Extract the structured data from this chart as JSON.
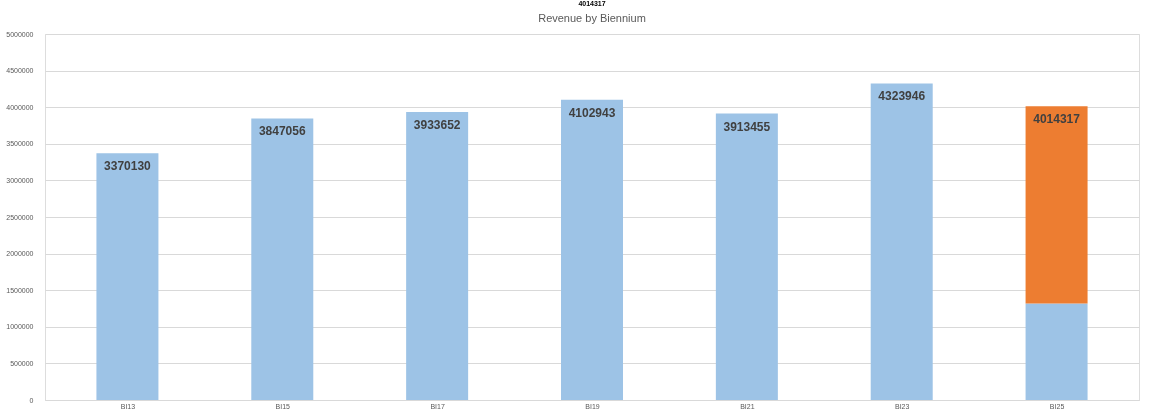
{
  "chart_data": {
    "type": "bar",
    "title": "Revenue by Biennium",
    "annotations": [
      "4014317"
    ],
    "categories": [
      "BI13",
      "BI15",
      "BI17",
      "BI19",
      "BI21",
      "BI23",
      "BI25"
    ],
    "stacked": true,
    "series": [
      {
        "color": "#9dc3e6",
        "values": [
          3370130,
          3847056,
          3933652,
          4102943,
          3913455,
          4323946,
          1320000
        ],
        "value_labels": [
          "3370130",
          "3847056",
          "3933652",
          "4102943",
          "3913455",
          "4323946",
          null
        ]
      },
      {
        "color": "#ed7d31",
        "values": [
          null,
          null,
          null,
          null,
          null,
          null,
          2694317
        ]
      }
    ],
    "totals": [
      null,
      null,
      null,
      null,
      null,
      null,
      "4014317"
    ],
    "ylim": [
      0,
      5000000
    ],
    "yticks": [
      0,
      500000,
      1000000,
      1500000,
      2000000,
      2500000,
      3000000,
      3500000,
      4000000,
      4500000,
      5000000
    ],
    "grid": "y"
  }
}
